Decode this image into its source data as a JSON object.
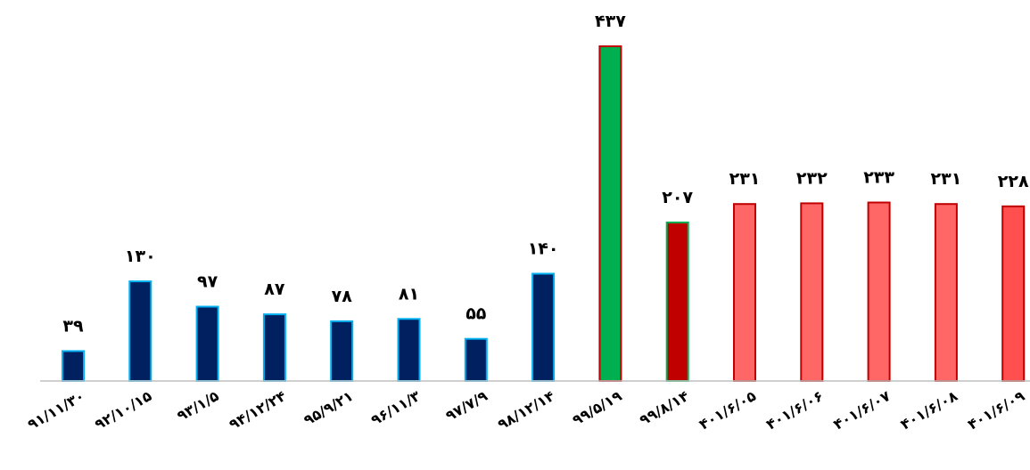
{
  "chart_data": {
    "type": "bar",
    "title": "",
    "xlabel": "",
    "ylabel": "",
    "ylim": [
      0,
      437
    ],
    "grid": false,
    "legend": "none",
    "categories": [
      "۹۱/۱۱/۳۰",
      "۹۲/۱۰/۱۵",
      "۹۳/۱/۵",
      "۹۴/۱۲/۲۴",
      "۹۵/۹/۲۱",
      "۹۶/۱۱/۳",
      "۹۷/۷/۹",
      "۹۸/۱۲/۱۴",
      "۹۹/۵/۱۹",
      "۹۹/۸/۱۴",
      "۴۰۱/۶/۰۵",
      "۴۰۱/۶/۰۶",
      "۴۰۱/۶/۰۷",
      "۴۰۱/۶/۰۸",
      "۴۰۱/۶/۰۹"
    ],
    "values": [
      39,
      130,
      97,
      87,
      78,
      81,
      55,
      140,
      437,
      207,
      231,
      232,
      233,
      231,
      228
    ],
    "value_labels": [
      "۳۹",
      "۱۳۰",
      "۹۷",
      "۸۷",
      "۷۸",
      "۸۱",
      "۵۵",
      "۱۴۰",
      "۴۳۷",
      "۲۰۷",
      "۲۳۱",
      "۲۳۲",
      "۲۳۳",
      "۲۳۱",
      "۲۲۸"
    ],
    "bar_fill": [
      "#002060",
      "#002060",
      "#002060",
      "#002060",
      "#002060",
      "#002060",
      "#002060",
      "#002060",
      "#00B050",
      "#C00000",
      "#FF6666",
      "#FF6666",
      "#FF6666",
      "#FF6666",
      "#FF4F4F"
    ],
    "bar_stroke": [
      "#00B0F0",
      "#00B0F0",
      "#00B0F0",
      "#00B0F0",
      "#00B0F0",
      "#00B0F0",
      "#00B0F0",
      "#00B0F0",
      "#C00000",
      "#00B050",
      "#C00000",
      "#C00000",
      "#C00000",
      "#C00000",
      "#C00000"
    ]
  }
}
